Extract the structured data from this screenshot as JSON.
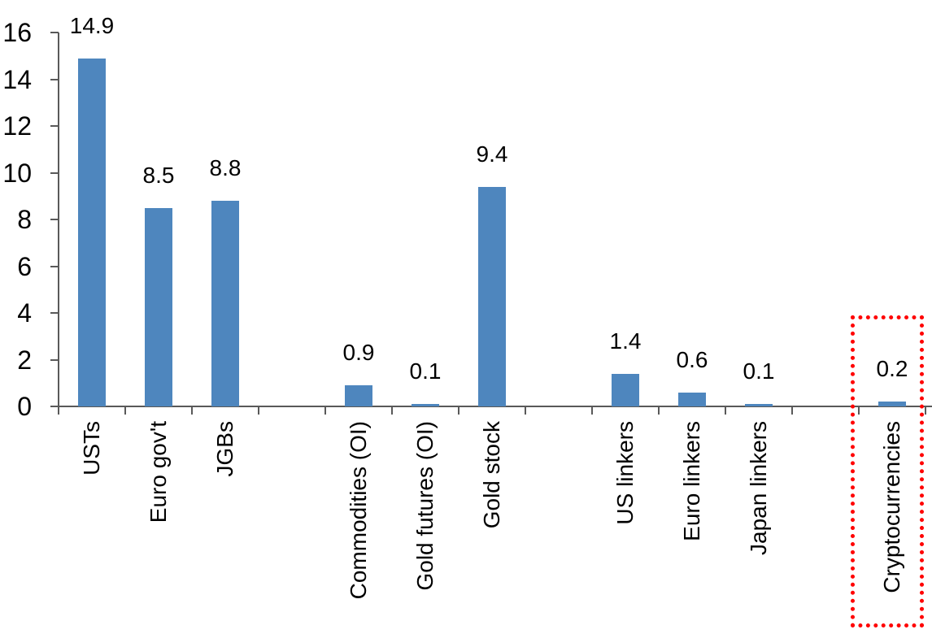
{
  "chart_data": {
    "type": "bar",
    "title": "",
    "xlabel": "",
    "ylabel": "",
    "categories": [
      "USTs",
      "Euro gov't",
      "JGBs",
      "Commodities (OI)",
      "Gold futures (OI)",
      "Gold stock",
      "US linkers",
      "Euro linkers",
      "Japan linkers",
      "Cryptocurrencies"
    ],
    "values": [
      14.9,
      8.5,
      8.8,
      0.9,
      0.1,
      9.4,
      1.4,
      0.6,
      0.1,
      0.2
    ],
    "data_labels": [
      "14.9",
      "8.5",
      "8.8",
      "0.9",
      "0.1",
      "9.4",
      "1.4",
      "0.6",
      "0.1",
      "0.2"
    ],
    "ylim": [
      0,
      16
    ],
    "yticks": [
      0,
      2,
      4,
      6,
      8,
      10,
      12,
      14,
      16
    ],
    "ytick_labels": [
      "0",
      "2",
      "4",
      "6",
      "8",
      "10",
      "12",
      "14",
      "16"
    ],
    "grid": false,
    "legend": false,
    "layout_hints": {
      "slot_indices": [
        0,
        1,
        2,
        4,
        5,
        6,
        8,
        9,
        10,
        12
      ],
      "total_slots": 13,
      "x_labels_rotated_90": true,
      "data_label_position": "outside-end"
    },
    "colors": {
      "bar_fill": "#4E86BE",
      "axis": "#595959",
      "text": "#000000",
      "highlight_border": "#FF0000"
    },
    "highlight": {
      "category": "Cryptocurrencies",
      "style": "red-dotted-box"
    }
  }
}
